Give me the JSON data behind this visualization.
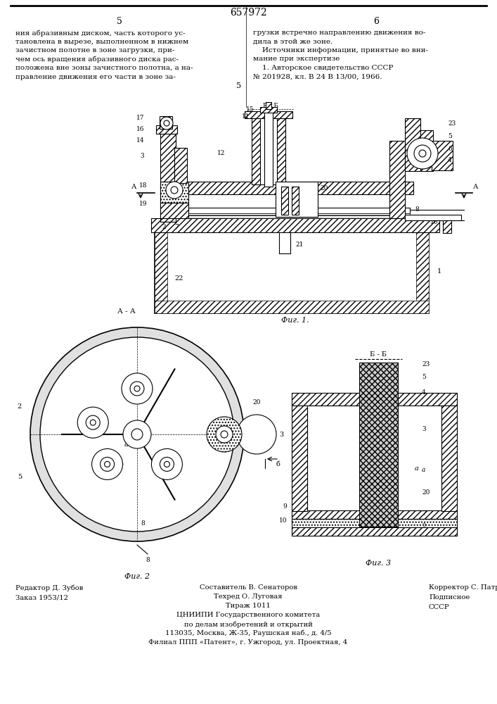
{
  "page_width": 7.07,
  "page_height": 10.0,
  "dpi": 100,
  "bg_color": "#ffffff",
  "title": "657972",
  "page_num_left": "5",
  "page_num_right": "6",
  "text_col1_lines": [
    "ния абразивным диском, часть которого ус-",
    "тановлена в вырезе, выполненном в нижнем",
    "зачистном полотне в зоне загрузки, при-",
    "чем ось вращения абразивного диска рас-",
    "положена вне зоны зачистного полотна, а на-",
    "правление движения его части в зоне за-"
  ],
  "text_col2_lines": [
    "грузки встречно направлению движения во-",
    "дила в этой же зоне.",
    "    Источники информации, принятые во вни-",
    "мание при экспертизе",
    "    1. Авторское свидетельство СССР",
    "№ 201928, кл. В 24 В 13/00, 1966."
  ],
  "fig1_caption": "Фиг. 1.",
  "fig2_caption": "Фиг. 2",
  "fig3_caption": "Фиг. 3",
  "bottom_left_lines": [
    "Редактор Д. Зубов",
    "Заказ 1953/12"
  ],
  "bottom_center_lines": [
    "Составитель В. Сенаторов",
    "Техред О. Луговая",
    "Тираж 1011",
    "ЦНИИПИ Государственного комитета",
    "по делам изобретений и открытий",
    "113035, Москва, Ж-35, Раушская наб., д. 4/5",
    "Филиал ППП «Патент», г. Ужгород, ул. Проектная, 4"
  ],
  "bottom_right_lines": [
    "Корректор С. Патрушева",
    "Подписное",
    "СССР"
  ]
}
